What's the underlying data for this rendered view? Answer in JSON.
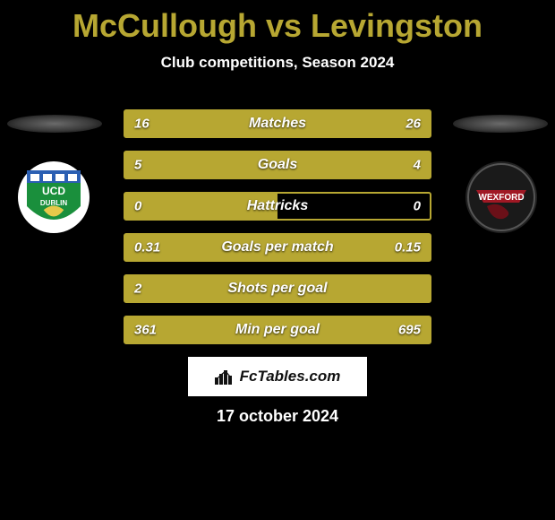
{
  "title": "McCullough vs Levingston",
  "subtitle": "Club competitions, Season 2024",
  "date": "17 october 2024",
  "brand": "FcTables.com",
  "colors": {
    "accent": "#b7a732",
    "left_fill": "#b7a732",
    "right_fill": "#b7a732",
    "row_border": "#b7a732",
    "background": "#000000",
    "text": "#ffffff"
  },
  "typography": {
    "title_fontsize": 36,
    "subtitle_fontsize": 17,
    "row_value_fontsize": 15,
    "row_label_fontsize": 16,
    "font_family": "Arial"
  },
  "teams": {
    "left": {
      "name": "UCD Dublin",
      "crest_bg": "#ffffff"
    },
    "right": {
      "name": "Wexford",
      "crest_bg": "#222222"
    }
  },
  "rows": [
    {
      "label": "Matches",
      "left": "16",
      "right": "26",
      "left_pct": 38,
      "right_pct": 62
    },
    {
      "label": "Goals",
      "left": "5",
      "right": "4",
      "left_pct": 56,
      "right_pct": 44
    },
    {
      "label": "Hattricks",
      "left": "0",
      "right": "0",
      "left_pct": 50,
      "right_pct": 0
    },
    {
      "label": "Goals per match",
      "left": "0.31",
      "right": "0.15",
      "left_pct": 67,
      "right_pct": 33
    },
    {
      "label": "Shots per goal",
      "left": "2",
      "right": "",
      "left_pct": 100,
      "right_pct": 0
    },
    {
      "label": "Min per goal",
      "left": "361",
      "right": "695",
      "left_pct": 34,
      "right_pct": 66
    }
  ]
}
